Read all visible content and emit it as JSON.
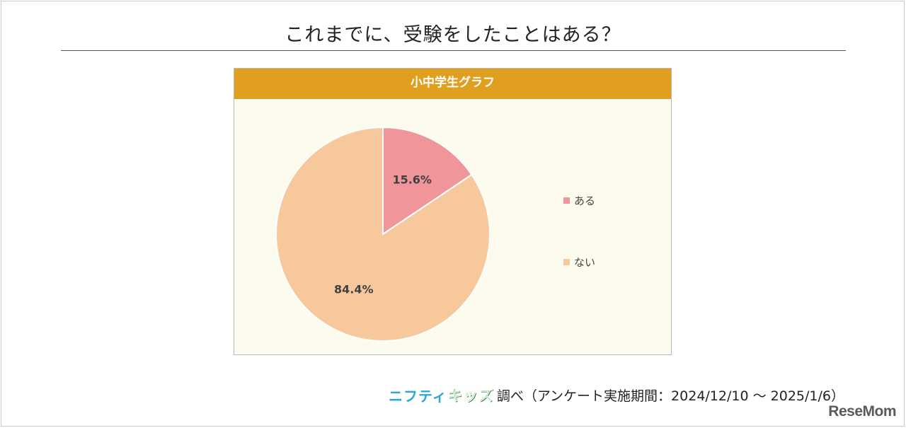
{
  "title": "これまでに、受験をしたことはある？",
  "chart_header": "小中学生グラフ",
  "colors": {
    "header_bg": "#e09f1f",
    "chart_bg": "#fcfbee",
    "aru": "#f0969a",
    "nai": "#f7c89b"
  },
  "footer": {
    "nifty_logo": "ニフティ",
    "kids_logo": "キッズ",
    "text": "調べ（アンケート実施期間：2024/12/10 ～ 2025/1/6）"
  },
  "watermark": "ReseMom",
  "chart_data": {
    "type": "pie",
    "title": "小中学生グラフ",
    "categories": [
      "ある",
      "ない"
    ],
    "values": [
      15.6,
      84.4
    ],
    "labels": [
      "15.6%",
      "84.4%"
    ],
    "colors": [
      "#f0969a",
      "#f7c89b"
    ],
    "legend_placement": "right"
  }
}
